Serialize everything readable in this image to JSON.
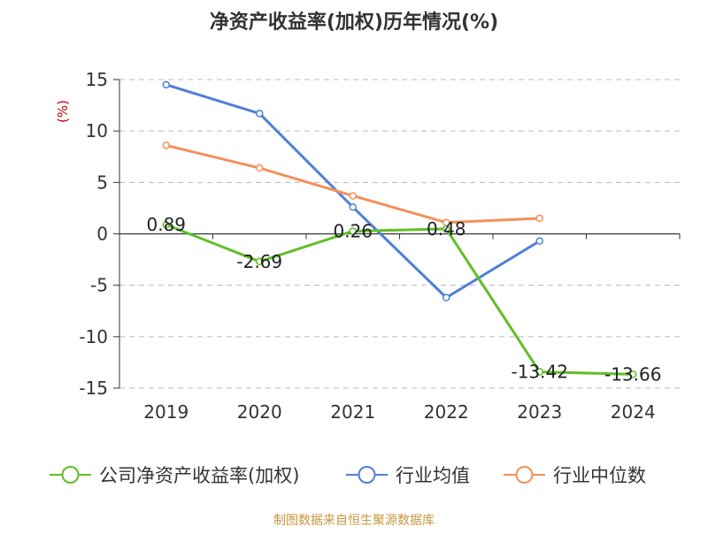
{
  "chart_data": {
    "type": "line",
    "title": "净资产收益率(加权)历年情况(%)",
    "ylabel": "(%)",
    "xlabel": "",
    "categories": [
      "2019",
      "2020",
      "2021",
      "2022",
      "2023",
      "2024"
    ],
    "ylim": [
      -15,
      15
    ],
    "yticks": [
      15,
      10,
      5,
      0,
      -5,
      -10,
      -15
    ],
    "grid": true,
    "legend_position": "bottom",
    "series": [
      {
        "name": "公司净资产收益率(加权)",
        "color": "#5fbf26",
        "values": [
          0.89,
          -2.69,
          0.26,
          0.48,
          -13.42,
          -13.66
        ],
        "labels": [
          "0.89",
          "-2.69",
          "0.26",
          "0.48",
          "-13.42",
          "-13.66"
        ]
      },
      {
        "name": "行业均值",
        "color": "#4f7fd8",
        "values": [
          14.5,
          11.7,
          2.6,
          -6.2,
          -0.7,
          null
        ]
      },
      {
        "name": "行业中位数",
        "color": "#f4905a",
        "values": [
          8.6,
          6.4,
          3.7,
          1.1,
          1.5,
          null
        ]
      }
    ]
  },
  "source": "制图数据来自恒生聚源数据库"
}
